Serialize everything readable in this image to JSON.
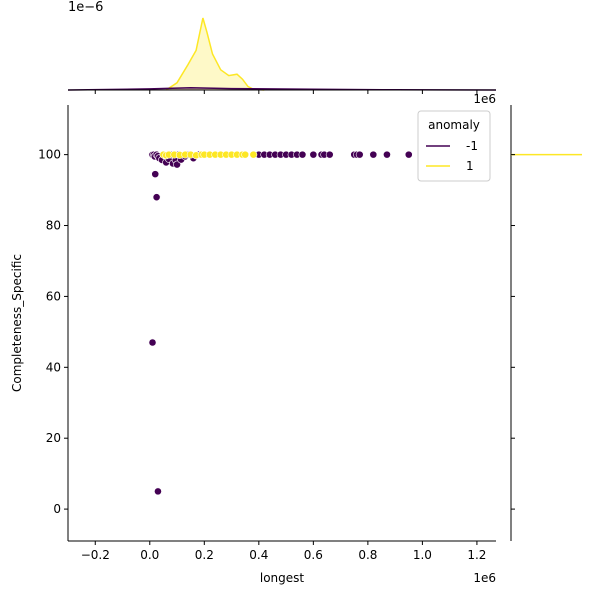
{
  "chart_data": {
    "type": "scatter",
    "title": "",
    "xlabel": "longest",
    "ylabel": "Completeness_Specific",
    "x_scale_label": "1e6",
    "top_scale_label": "1e−6",
    "right_scale_label": "1e6",
    "xlim": [
      -300000,
      1270000
    ],
    "ylim": [
      -9,
      114
    ],
    "x_ticks": [
      -200000,
      0,
      200000,
      400000,
      600000,
      800000,
      1000000,
      1200000
    ],
    "x_tick_labels": [
      "−0.2",
      "0.0",
      "0.2",
      "0.4",
      "0.6",
      "0.8",
      "1.0",
      "1.2"
    ],
    "y_ticks": [
      0,
      20,
      40,
      60,
      80,
      100
    ],
    "y_tick_labels": [
      "0",
      "20",
      "40",
      "60",
      "80",
      "100"
    ],
    "grid": false,
    "legend": {
      "title": "anomaly",
      "placement": "top-right",
      "entries": [
        {
          "label": "-1",
          "color": "#440154"
        },
        {
          "label": "1",
          "color": "#fde725"
        }
      ]
    },
    "series": [
      {
        "name": "-1",
        "color": "#440154",
        "points": [
          [
            10000,
            100
          ],
          [
            15000,
            100
          ],
          [
            18000,
            99.5
          ],
          [
            25000,
            100
          ],
          [
            30000,
            99.6
          ],
          [
            35000,
            99
          ],
          [
            45000,
            98.5
          ],
          [
            55000,
            99.8
          ],
          [
            60000,
            97.8
          ],
          [
            70000,
            98.8
          ],
          [
            80000,
            100
          ],
          [
            85000,
            97.5
          ],
          [
            95000,
            98.5
          ],
          [
            100000,
            97.2
          ],
          [
            105000,
            100
          ],
          [
            115000,
            98.6
          ],
          [
            130000,
            99.5
          ],
          [
            140000,
            100
          ],
          [
            160000,
            99
          ],
          [
            180000,
            100
          ],
          [
            20000,
            94.5
          ],
          [
            25000,
            88
          ],
          [
            10000,
            47
          ],
          [
            30000,
            5
          ],
          [
            400000,
            100
          ],
          [
            420000,
            100
          ],
          [
            440000,
            100
          ],
          [
            460000,
            100
          ],
          [
            480000,
            100
          ],
          [
            500000,
            100
          ],
          [
            520000,
            100
          ],
          [
            540000,
            100
          ],
          [
            560000,
            100
          ],
          [
            600000,
            100
          ],
          [
            630000,
            100
          ],
          [
            640000,
            100
          ],
          [
            660000,
            100
          ],
          [
            750000,
            100
          ],
          [
            760000,
            100
          ],
          [
            770000,
            100
          ],
          [
            820000,
            100
          ],
          [
            870000,
            100
          ],
          [
            950000,
            100
          ]
        ]
      },
      {
        "name": "1",
        "color": "#fde725",
        "points": [
          [
            50000,
            100
          ],
          [
            60000,
            99.8
          ],
          [
            70000,
            100
          ],
          [
            90000,
            100
          ],
          [
            110000,
            99.9
          ],
          [
            130000,
            100
          ],
          [
            150000,
            100
          ],
          [
            170000,
            99.8
          ],
          [
            190000,
            100
          ],
          [
            200000,
            100
          ],
          [
            220000,
            100
          ],
          [
            240000,
            100
          ],
          [
            260000,
            100
          ],
          [
            280000,
            100
          ],
          [
            300000,
            100
          ],
          [
            320000,
            100
          ],
          [
            340000,
            100
          ],
          [
            350000,
            100
          ],
          [
            380000,
            100
          ]
        ]
      }
    ],
    "top_marginal": {
      "type": "kde",
      "series": [
        {
          "name": "1",
          "color": "#fde725",
          "x": [
            60000,
            100000,
            140000,
            170000,
            195000,
            210000,
            230000,
            260000,
            290000,
            320000,
            340000,
            360000,
            380000,
            420000
          ],
          "density": [
            0,
            0.1,
            0.35,
            0.55,
            1.0,
            0.8,
            0.5,
            0.28,
            0.2,
            0.22,
            0.15,
            0.05,
            0.01,
            0
          ]
        },
        {
          "name": "-1",
          "color": "#440154",
          "x": [
            -300000,
            0,
            150000,
            300000,
            600000,
            900000,
            1270000
          ],
          "density": [
            0,
            0.015,
            0.03,
            0.02,
            0.01,
            0.003,
            0
          ]
        }
      ]
    },
    "right_marginal": {
      "type": "kde",
      "series": [
        {
          "name": "1",
          "color": "#fde725",
          "y": 100
        }
      ]
    }
  }
}
